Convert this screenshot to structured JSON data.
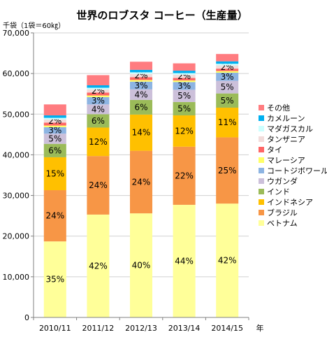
{
  "chart_data": {
    "type": "bar",
    "stacked": true,
    "title": "世界のロブスタ コーヒー（生産量）",
    "ylabel": "千袋（1袋＝60㎏）",
    "xlabel": "年",
    "ylim": [
      0,
      70000
    ],
    "yticks": [
      "0",
      "10,000",
      "20,000",
      "30,000",
      "40,000",
      "50,000",
      "60,000",
      "70,000"
    ],
    "yticks_values": [
      0,
      10000,
      20000,
      30000,
      40000,
      50000,
      60000,
      70000
    ],
    "grid": true,
    "legend_position": "right",
    "categories": [
      "2010/11",
      "2011/12",
      "2012/13",
      "2013/14",
      "2014/15"
    ],
    "series": [
      {
        "name": "ベトナム",
        "color": "#ffff99",
        "values": [
          18700,
          25300,
          25600,
          27700,
          28000
        ],
        "labels": [
          "35%",
          "42%",
          "40%",
          "44%",
          "42%"
        ]
      },
      {
        "name": "ブラジル",
        "color": "#f79646",
        "values": [
          12600,
          14400,
          15400,
          14300,
          16300
        ],
        "labels": [
          "24%",
          "24%",
          "24%",
          "22%",
          "25%"
        ]
      },
      {
        "name": "インドネシア",
        "color": "#ffc000",
        "values": [
          8100,
          7000,
          8900,
          7700,
          7300
        ],
        "labels": [
          "15%",
          "12%",
          "14%",
          "12%",
          "11%"
        ]
      },
      {
        "name": "インド",
        "color": "#9bbb59",
        "values": [
          3300,
          3300,
          3600,
          3300,
          3500
        ],
        "labels": [
          "6%",
          "6%",
          "6%",
          "5%",
          "5%"
        ]
      },
      {
        "name": "ウガンダ",
        "color": "#ccc0da",
        "values": [
          2500,
          2400,
          2600,
          3000,
          3100
        ],
        "labels": [
          "5%",
          "4%",
          "4%",
          "5%",
          "5%"
        ]
      },
      {
        "name": "コートジボワール",
        "color": "#8db4e2",
        "values": [
          1600,
          1800,
          1900,
          1900,
          2000
        ],
        "labels": [
          "3%",
          "3%",
          "3%",
          "3%",
          "3%"
        ]
      },
      {
        "name": "マレーシア",
        "color": "#ffff66",
        "values": [
          400,
          400,
          400,
          400,
          400
        ],
        "labels": [
          "",
          "",
          "",
          "",
          ""
        ]
      },
      {
        "name": "タイ",
        "color": "#ff6666",
        "values": [
          700,
          700,
          700,
          600,
          600
        ],
        "labels": [
          "",
          "",
          "",
          "",
          ""
        ]
      },
      {
        "name": "タンザニア",
        "color": "#f2dcdb",
        "values": [
          800,
          800,
          800,
          800,
          800
        ],
        "labels": [
          "2%",
          "2%",
          "2%",
          "2%",
          "2%"
        ]
      },
      {
        "name": "マダガスカル",
        "color": "#ccffff",
        "values": [
          400,
          400,
          400,
          400,
          400
        ],
        "labels": [
          "",
          "",
          "",
          "",
          ""
        ]
      },
      {
        "name": "カメルーン",
        "color": "#00b0f0",
        "values": [
          600,
          600,
          600,
          600,
          600
        ],
        "labels": [
          "",
          "",
          "",
          "",
          ""
        ]
      },
      {
        "name": "その他",
        "color": "#ff7c80",
        "values": [
          2700,
          2500,
          2000,
          1800,
          1800
        ],
        "labels": [
          "",
          "",
          "",
          "",
          ""
        ]
      }
    ]
  }
}
